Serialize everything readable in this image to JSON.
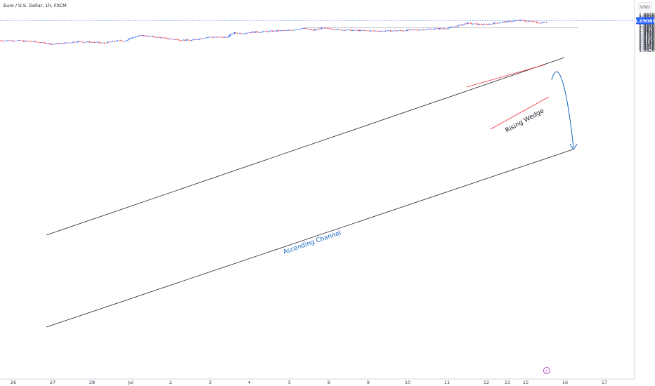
{
  "header": {
    "title": "Euro / U.S. Dollar, 1h, FXCM"
  },
  "price_axis": {
    "currency": "USD"
  },
  "chart_data": {
    "type": "candlestick",
    "title": "Euro / U.S. Dollar, 1h, FXCM",
    "xlabel": "",
    "ylabel": "USD",
    "ylim": [
      1.062,
      1.098
    ],
    "y_ticks": [
      "1.09700",
      "1.09600",
      "1.09500",
      "1.09400",
      "1.09300",
      "1.09200",
      "1.09100",
      "1.09000",
      "1.08900",
      "1.08800",
      "1.08700",
      "1.08600",
      "1.08500",
      "1.08400",
      "1.08300",
      "1.08200",
      "1.08100",
      "1.08000",
      "1.07900",
      "1.07800",
      "1.07700",
      "1.07600",
      "1.07500",
      "1.07400",
      "1.07300",
      "1.07200",
      "1.07100",
      "1.07000",
      "1.06900",
      "1.06800",
      "1.06700",
      "1.06600",
      "1.06500",
      "1.06400",
      "1.06300",
      "1.06200"
    ],
    "x_ticks": [
      "26",
      "27",
      "28",
      "Jul",
      "2",
      "3",
      "4",
      "5",
      "8",
      "9",
      "10",
      "11",
      "12",
      "13",
      "15",
      "16",
      "17"
    ],
    "last_price": {
      "value": 1.09081,
      "label": "1.09081"
    },
    "colors": {
      "up": "#2962ff",
      "down": "#f23645",
      "last_price": "#2962ff",
      "channel": "#1f2330",
      "wedge": "#f23645",
      "projection": "#1565c0",
      "zone": "#b8b8b8"
    },
    "grid": false,
    "series": [
      {
        "kind": "price-path",
        "points": [
          [
            "26",
            1.0715
          ],
          [
            "26.5",
            1.0705
          ],
          [
            "27",
            1.068
          ],
          [
            "27.3",
            1.069
          ],
          [
            "27.6",
            1.0705
          ],
          [
            "28",
            1.07
          ],
          [
            "28.3",
            1.069
          ],
          [
            "28.6",
            1.0712
          ],
          [
            "28.9",
            1.0716
          ],
          [
            "Jul",
            1.0745
          ],
          [
            "Jul.3",
            1.0765
          ],
          [
            "Jul.6",
            1.075
          ],
          [
            "2",
            1.073
          ],
          [
            "2.5",
            1.0715
          ],
          [
            "2.8",
            1.074
          ],
          [
            "3",
            1.075
          ],
          [
            "3.4",
            1.0745
          ],
          [
            "3.6",
            1.079
          ],
          [
            "3.8",
            1.0785
          ],
          [
            "4",
            1.0795
          ],
          [
            "4.5",
            1.0805
          ],
          [
            "5",
            1.0815
          ],
          [
            "5.3",
            1.0835
          ],
          [
            "5.6",
            1.0815
          ],
          [
            "5.8",
            1.0835
          ],
          [
            "8",
            1.083
          ],
          [
            "8.3",
            1.082
          ],
          [
            "8.6",
            1.0815
          ],
          [
            "9",
            1.081
          ],
          [
            "9.5",
            1.0808
          ],
          [
            "10",
            1.0815
          ],
          [
            "10.5",
            1.0825
          ],
          [
            "11",
            1.0835
          ],
          [
            "11.3",
            1.086
          ],
          [
            "11.5",
            1.0885
          ],
          [
            "11.8",
            1.0872
          ],
          [
            "12",
            1.0873
          ],
          [
            "12.4",
            1.0895
          ],
          [
            "12.8",
            1.091
          ],
          [
            "13",
            1.0898
          ],
          [
            "13.3",
            1.089
          ],
          [
            "15",
            1.0912
          ],
          [
            "15.2",
            1.0908
          ]
        ]
      }
    ],
    "annotations": [
      {
        "type": "label",
        "text": "Ascending Channel",
        "color": "#1565c0"
      },
      {
        "type": "label",
        "text": "Rising Wedge",
        "color": "#131722"
      },
      {
        "type": "channel",
        "name": "ascending-channel"
      },
      {
        "type": "zone",
        "name": "support-resistance-zone",
        "from": 1.0837,
        "to": 1.0844
      },
      {
        "type": "wedge",
        "name": "rising-wedge"
      },
      {
        "type": "projection-arrow",
        "name": "bearish-projection"
      },
      {
        "type": "marker",
        "text": "⚡"
      }
    ]
  }
}
